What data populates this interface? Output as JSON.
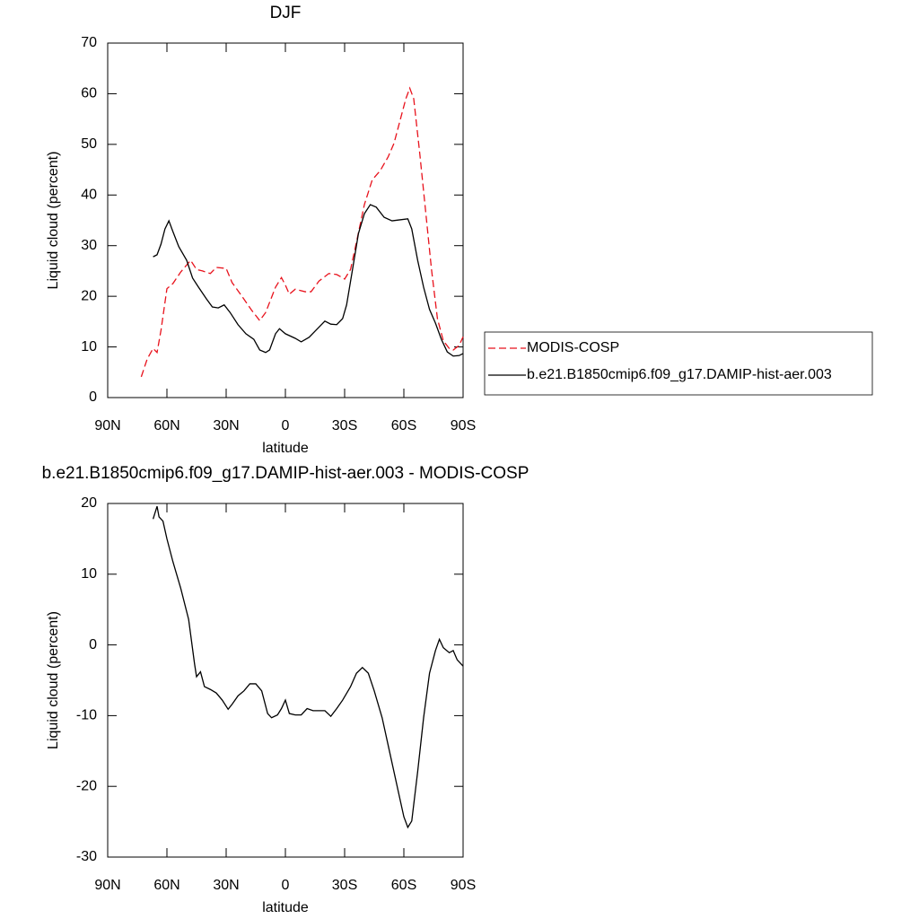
{
  "chart_data": [
    {
      "type": "line",
      "title": "DJF",
      "xlabel": "latitude",
      "ylabel": "Liquid cloud (percent)",
      "xlim": [
        90,
        -90
      ],
      "xticks": [
        {
          "value": 90,
          "label": "90N"
        },
        {
          "value": 60,
          "label": "60N"
        },
        {
          "value": 30,
          "label": "30N"
        },
        0,
        {
          "value": -30,
          "label": "30S"
        },
        {
          "value": -60,
          "label": "60S"
        },
        {
          "value": -90,
          "label": "90S"
        }
      ],
      "ylim": [
        0,
        70
      ],
      "yticks": [
        0,
        10,
        20,
        30,
        40,
        50,
        60,
        70
      ],
      "legend": "right",
      "series": [
        {
          "name": "MODIS-COSP",
          "color": "#e8121c",
          "line_style": "dashed",
          "x": [
            73,
            70,
            67,
            65,
            63,
            60,
            57,
            53,
            48,
            45,
            42,
            38,
            35,
            30,
            27,
            22,
            17,
            13,
            10,
            5,
            2,
            0,
            -2,
            -5,
            -10,
            -13,
            -17,
            -22,
            -26,
            -30,
            -33,
            -36,
            -40,
            -44,
            -48,
            -52,
            -55,
            -58,
            -61,
            -63,
            -65,
            -68,
            -71,
            -74,
            -77,
            -80,
            -83,
            -85,
            -88,
            -90
          ],
          "values": [
            4.1,
            7.6,
            9.7,
            8.9,
            13.3,
            21.5,
            22.5,
            24.8,
            27.1,
            25.3,
            25,
            24.5,
            25.7,
            25.5,
            22.7,
            20,
            17.2,
            15.2,
            16.8,
            21.8,
            23.7,
            22.2,
            20.4,
            21.4,
            20.9,
            20.9,
            23,
            24.5,
            24.3,
            23.4,
            25.3,
            30.7,
            38.1,
            43,
            44.8,
            47.5,
            50.2,
            54.6,
            59,
            61.1,
            59,
            48.4,
            36.9,
            25.3,
            15.6,
            11.2,
            9.7,
            9.4,
            10.3,
            12
          ]
        },
        {
          "name": "b.e21.B1850cmip6.f09_g17.DAMIP-hist-aer.003",
          "color": "#000000",
          "line_style": "solid",
          "x": [
            67,
            65,
            63,
            61,
            59,
            57,
            54,
            50,
            47,
            44,
            40,
            37,
            34,
            31,
            28,
            24,
            20,
            16,
            13,
            10,
            8,
            5,
            3,
            0,
            -5,
            -8,
            -12,
            -16,
            -20,
            -23,
            -26,
            -29,
            -31,
            -34,
            -37,
            -40,
            -43,
            -46,
            -50,
            -54,
            -58,
            -62,
            -64,
            -67,
            -70,
            -73,
            -76,
            -79,
            -82,
            -85,
            -88,
            -90
          ],
          "values": [
            27.8,
            28.2,
            30.3,
            33.3,
            34.9,
            32.8,
            29.8,
            27.1,
            23.6,
            21.8,
            19.5,
            17.9,
            17.7,
            18.3,
            16.8,
            14.4,
            12.6,
            11.5,
            9.4,
            8.9,
            9.4,
            12.6,
            13.6,
            12.6,
            11.7,
            11,
            11.9,
            13.5,
            15.1,
            14.5,
            14.4,
            15.6,
            18.3,
            25.3,
            32.4,
            36.3,
            38.1,
            37.6,
            35.6,
            34.9,
            35.1,
            35.3,
            33.3,
            27.1,
            21.8,
            17.4,
            14.7,
            11.5,
            9,
            8.2,
            8.3,
            8.7
          ]
        }
      ]
    },
    {
      "type": "line",
      "title": "b.e21.B1850cmip6.f09_g17.DAMIP-hist-aer.003 - MODIS-COSP",
      "xlabel": "latitude",
      "ylabel": "Liquid cloud (percent)",
      "xlim": [
        90,
        -90
      ],
      "xticks": [
        {
          "value": 90,
          "label": "90N"
        },
        {
          "value": 60,
          "label": "60N"
        },
        {
          "value": 30,
          "label": "30N"
        },
        0,
        {
          "value": -30,
          "label": "30S"
        },
        {
          "value": -60,
          "label": "60S"
        },
        {
          "value": -90,
          "label": "90S"
        }
      ],
      "ylim": [
        -30,
        20
      ],
      "yticks": [
        -30,
        -20,
        -10,
        0,
        10,
        20
      ],
      "series": [
        {
          "color": "#000000",
          "line_style": "solid",
          "x": [
            67,
            65,
            64,
            62,
            60,
            57,
            53,
            49,
            46,
            45,
            43,
            41,
            38,
            35,
            32,
            29,
            27,
            24,
            21,
            18,
            15,
            12,
            9,
            7,
            4,
            2,
            0,
            -2,
            -5,
            -8,
            -11,
            -14,
            -17,
            -20,
            -23,
            -26,
            -29,
            -33,
            -36,
            -39,
            -42,
            -45,
            -49,
            -53,
            -57,
            -60,
            -62,
            -64,
            -67,
            -70,
            -73,
            -76,
            -78,
            -80,
            -83,
            -85,
            -87,
            -90
          ],
          "values": [
            17.8,
            19.6,
            18.1,
            17.5,
            15,
            11.8,
            8,
            3.6,
            -2.7,
            -4.5,
            -3.8,
            -5.9,
            -6.3,
            -6.8,
            -7.8,
            -9.1,
            -8.4,
            -7.2,
            -6.5,
            -5.5,
            -5.5,
            -6.5,
            -9.7,
            -10.3,
            -9.9,
            -9,
            -7.8,
            -9.7,
            -9.9,
            -9.9,
            -9,
            -9.3,
            -9.3,
            -9.3,
            -10.1,
            -9,
            -7.8,
            -5.9,
            -4,
            -3.2,
            -4,
            -6.5,
            -10.3,
            -15.4,
            -20.5,
            -24.3,
            -25.8,
            -24.9,
            -17.9,
            -10.3,
            -4,
            -0.8,
            0.8,
            -0.4,
            -1.1,
            -0.8,
            -2.1,
            -3
          ]
        }
      ]
    }
  ]
}
